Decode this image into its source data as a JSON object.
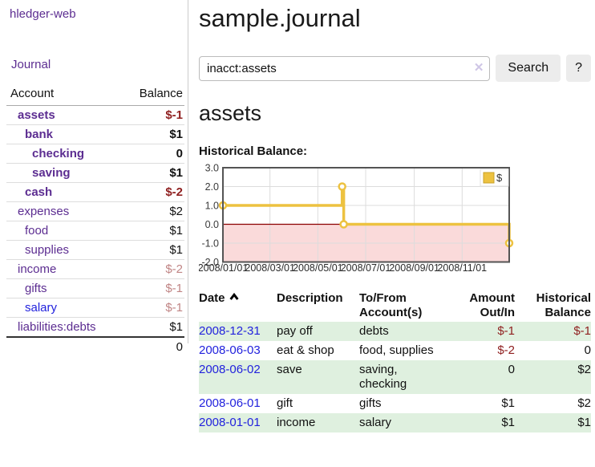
{
  "app": {
    "title": "hledger-web"
  },
  "colors": {
    "accent_purple": "#5c2d91",
    "link_blue": "#2222dd",
    "negative_strong": "#8f1f1f",
    "negative_muted": "#c08585",
    "row_stripe_green": "#dff0df",
    "chart_line_yellow": "#edc240",
    "chart_negative_fill": "#fadada",
    "chart_zero_line": "#8b0000"
  },
  "sidebar": {
    "journal_link": "Journal",
    "accounts_table": {
      "headers": {
        "account": "Account",
        "balance": "Balance"
      },
      "rows": [
        {
          "account": "assets",
          "balance": "$-1",
          "indent": 0,
          "bold": true,
          "account_color": "purple",
          "balance_color": "negative"
        },
        {
          "account": "bank",
          "balance": "$1",
          "indent": 1,
          "bold": true,
          "account_color": "purple",
          "balance_color": "normal"
        },
        {
          "account": "checking",
          "balance": "0",
          "indent": 2,
          "bold": true,
          "account_color": "purple",
          "balance_color": "normal"
        },
        {
          "account": "saving",
          "balance": "$1",
          "indent": 2,
          "bold": true,
          "account_color": "purple",
          "balance_color": "normal"
        },
        {
          "account": "cash",
          "balance": "$-2",
          "indent": 1,
          "bold": true,
          "account_color": "purple",
          "balance_color": "negative"
        },
        {
          "account": "expenses",
          "balance": "$2",
          "indent": 0,
          "bold": false,
          "account_color": "purple",
          "balance_color": "normal"
        },
        {
          "account": "food",
          "balance": "$1",
          "indent": 1,
          "bold": false,
          "account_color": "purple",
          "balance_color": "normal"
        },
        {
          "account": "supplies",
          "balance": "$1",
          "indent": 1,
          "bold": false,
          "account_color": "purple",
          "balance_color": "normal"
        },
        {
          "account": "income",
          "balance": "$-2",
          "indent": 0,
          "bold": false,
          "account_color": "purple",
          "balance_color": "negative-muted"
        },
        {
          "account": "gifts",
          "balance": "$-1",
          "indent": 1,
          "bold": false,
          "account_color": "purple",
          "balance_color": "negative-muted"
        },
        {
          "account": "salary",
          "balance": "$-1",
          "indent": 1,
          "bold": false,
          "account_color": "blue",
          "balance_color": "negative-muted"
        },
        {
          "account": "liabilities:debts",
          "balance": "$1",
          "indent": 0,
          "bold": false,
          "account_color": "purple",
          "balance_color": "normal"
        }
      ],
      "total": "0"
    }
  },
  "header": {
    "title": "sample.journal"
  },
  "search": {
    "value": "inacct:assets",
    "clear_icon": "✕",
    "search_button": "Search",
    "help_button": "?"
  },
  "account_page": {
    "heading": "assets",
    "chart_title": "Historical Balance:"
  },
  "chart_data": {
    "type": "line",
    "step": true,
    "title": "Historical Balance",
    "series": [
      {
        "name": "$",
        "color": "#edc240",
        "points": [
          {
            "date": "2008-01-01",
            "value": 1
          },
          {
            "date": "2008-06-01",
            "value": 2
          },
          {
            "date": "2008-06-03",
            "value": 0
          },
          {
            "date": "2008-12-31",
            "value": -1
          }
        ]
      }
    ],
    "x_range": [
      "2008-01-01",
      "2008-12-31"
    ],
    "x_tick_dates": [
      "2008-01-01",
      "2008-03-01",
      "2008-05-01",
      "2008-07-01",
      "2008-09-01",
      "2008-11-01"
    ],
    "x_tick_labels": [
      "2008/01/01",
      "2008/03/01",
      "2008/05/01",
      "2008/07/01",
      "2008/09/01",
      "2008/11/01"
    ],
    "ylim": [
      -2,
      3
    ],
    "y_ticks": [
      3,
      2,
      1,
      0,
      -1,
      -2
    ],
    "y_tick_labels": [
      "3.0",
      "2.0",
      "1.0",
      "0.0",
      "-1.0",
      "-2.0"
    ],
    "grid": true,
    "legend": {
      "label": "$",
      "position": "top-right"
    },
    "negative_fill": "#fadada",
    "zero_line_color": "#8b0000"
  },
  "register": {
    "headers": {
      "date": "Date",
      "description": "Description",
      "accounts": "To/From Account(s)",
      "amount": "Amount Out/In",
      "balance": "Historical Balance"
    },
    "sort": {
      "column": "date",
      "direction": "ascending"
    },
    "rows": [
      {
        "date": "2008-12-31",
        "description": "pay off",
        "accounts": "debts",
        "amount": "$-1",
        "amount_color": "negative",
        "balance": "$-1",
        "balance_color": "negative"
      },
      {
        "date": "2008-06-03",
        "description": "eat & shop",
        "accounts": "food, supplies",
        "amount": "$-2",
        "amount_color": "negative",
        "balance": "0",
        "balance_color": "normal"
      },
      {
        "date": "2008-06-02",
        "description": "save",
        "accounts": "saving, checking",
        "amount": "0",
        "amount_color": "normal",
        "balance": "$2",
        "balance_color": "normal"
      },
      {
        "date": "2008-06-01",
        "description": "gift",
        "accounts": "gifts",
        "amount": "$1",
        "amount_color": "normal",
        "balance": "$2",
        "balance_color": "normal"
      },
      {
        "date": "2008-01-01",
        "description": "income",
        "accounts": "salary",
        "amount": "$1",
        "amount_color": "normal",
        "balance": "$1",
        "balance_color": "normal"
      }
    ]
  }
}
